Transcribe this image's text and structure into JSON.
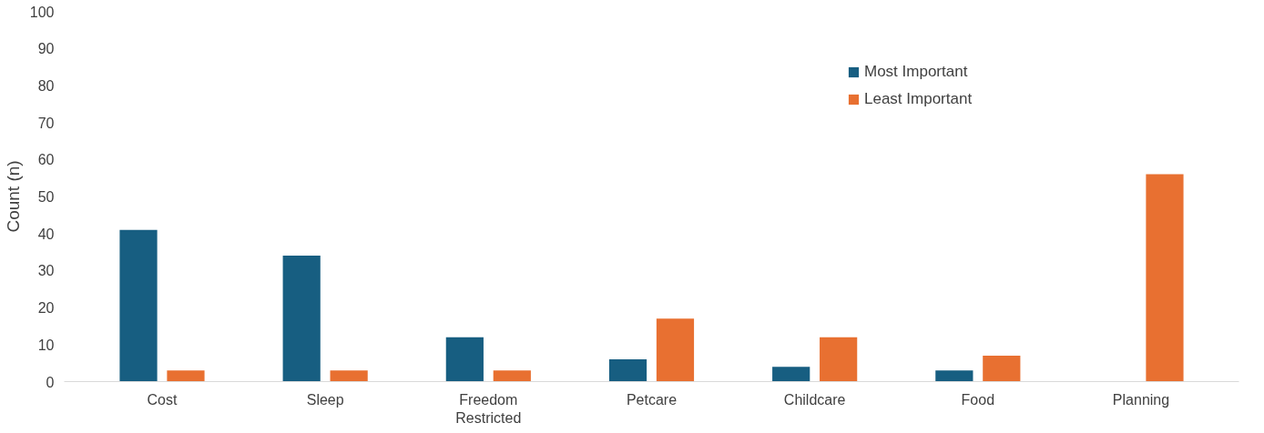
{
  "chart_data": {
    "type": "bar",
    "ylabel": "Count (n)",
    "categories": [
      "Cost",
      "Sleep",
      "Freedom Restricted",
      "Petcare",
      "Childcare",
      "Food",
      "Planning"
    ],
    "series": [
      {
        "name": "Most Important",
        "color": "#175e81",
        "values": [
          41,
          34,
          12,
          6,
          4,
          3,
          null
        ]
      },
      {
        "name": "Least Important",
        "color": "#e87031",
        "values": [
          3,
          3,
          3,
          17,
          12,
          7,
          56
        ]
      }
    ],
    "ylim": [
      0,
      100
    ],
    "yticks": [
      0,
      10,
      20,
      30,
      40,
      50,
      60,
      70,
      80,
      90,
      100
    ],
    "grid": false,
    "legend": "top right"
  }
}
